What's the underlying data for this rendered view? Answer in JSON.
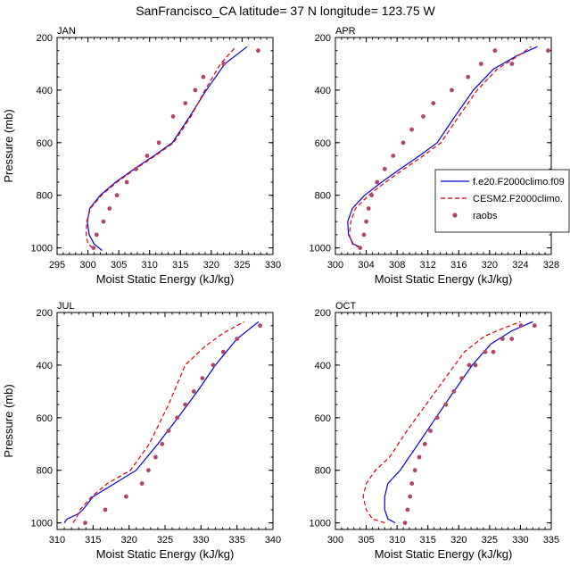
{
  "title": "SanFrancisco_CA  latitude= 37 N longitude= 123.75 W",
  "legend": {
    "entries": [
      {
        "label": "f.e20.F2000climo.f09",
        "style": "solid",
        "color": "#0000e0"
      },
      {
        "label": "CESM2.F2000climo.",
        "style": "dashed",
        "color": "#e00000"
      },
      {
        "label": "raobs",
        "style": "dots",
        "color": "#b0446a"
      }
    ]
  },
  "chart_data": [
    {
      "type": "line",
      "panel_title": "JAN",
      "xlabel": "Moist Static Energy (kJ/kg)",
      "ylabel": "Pressure (mb)",
      "xlim": [
        295,
        330
      ],
      "xticks": [
        "295",
        "300",
        "305",
        "310",
        "315",
        "320",
        "325",
        "330"
      ],
      "ylim": [
        200,
        1025
      ],
      "yticks": [
        "200",
        "400",
        "600",
        "800",
        "1000"
      ],
      "series": [
        {
          "name": "f.e20.F2000climo.f09",
          "x": [
            302.3,
            301.0,
            300.2,
            299.9,
            300.3,
            302.0,
            304.5,
            307.5,
            310.7,
            313.7,
            316.5,
            319.2,
            322.2,
            325.8
          ],
          "p": [
            1010,
            985,
            950,
            900,
            850,
            800,
            750,
            700,
            650,
            600,
            500,
            400,
            300,
            235
          ]
        },
        {
          "name": "CESM2.F2000climo.",
          "x": [
            300.8,
            300.0,
            299.7,
            299.8,
            300.4,
            302.2,
            304.7,
            307.7,
            310.9,
            313.9,
            316.7,
            319.0,
            321.5,
            324.0
          ],
          "p": [
            1000,
            985,
            950,
            900,
            850,
            800,
            750,
            700,
            650,
            600,
            500,
            400,
            300,
            235
          ]
        },
        {
          "name": "raobs",
          "x": [
            300.9,
            301.4,
            302.5,
            303.5,
            304.7,
            306.3,
            307.8,
            309.6,
            311.5,
            313.8,
            315.8,
            317.4,
            318.7,
            322.0,
            327.6
          ],
          "p": [
            1000,
            950,
            900,
            850,
            800,
            750,
            700,
            650,
            600,
            500,
            450,
            400,
            350,
            300,
            250
          ]
        }
      ]
    },
    {
      "type": "line",
      "panel_title": "APR",
      "xlabel": "Moist Static Energy (kJ/kg)",
      "ylabel": "",
      "xlim": [
        300,
        328
      ],
      "xticks": [
        "300",
        "304",
        "308",
        "312",
        "316",
        "320",
        "324",
        "328"
      ],
      "ylim": [
        200,
        1025
      ],
      "yticks": [
        "200",
        "400",
        "600",
        "800",
        "1000"
      ],
      "series": [
        {
          "name": "f.e20.F2000climo.f09",
          "x": [
            303.4,
            302.3,
            301.7,
            301.6,
            302.2,
            303.8,
            306.0,
            308.4,
            310.9,
            313.2,
            315.5,
            317.9,
            320.5,
            323.5,
            326.2
          ],
          "p": [
            1000,
            985,
            950,
            900,
            850,
            800,
            750,
            700,
            650,
            600,
            500,
            400,
            320,
            270,
            235
          ]
        },
        {
          "name": "CESM2.F2000climo.",
          "x": [
            303.2,
            302.2,
            301.8,
            302.0,
            302.6,
            304.3,
            306.5,
            308.9,
            311.4,
            313.7,
            316.0,
            318.4,
            321.0,
            323.7,
            325.4
          ],
          "p": [
            1000,
            985,
            950,
            900,
            850,
            800,
            750,
            700,
            650,
            600,
            500,
            400,
            320,
            270,
            235
          ]
        },
        {
          "name": "raobs",
          "x": [
            303.2,
            303.7,
            304.0,
            304.3,
            304.7,
            305.4,
            306.4,
            307.5,
            308.8,
            309.9,
            311.4,
            312.7,
            315.1,
            317.2,
            318.9,
            320.7,
            322.9,
            327.6
          ],
          "p": [
            1000,
            950,
            900,
            850,
            800,
            750,
            700,
            650,
            600,
            550,
            500,
            450,
            400,
            350,
            300,
            250,
            300,
            250
          ]
        }
      ]
    },
    {
      "type": "line",
      "panel_title": "JUL",
      "xlabel": "Moist Static Energy (kJ/kg)",
      "ylabel": "Pressure (mb)",
      "xlim": [
        310,
        340
      ],
      "xticks": [
        "310",
        "315",
        "320",
        "325",
        "330",
        "335",
        "340"
      ],
      "ylim": [
        200,
        1025
      ],
      "yticks": [
        "200",
        "400",
        "600",
        "800",
        "1000"
      ],
      "series": [
        {
          "name": "f.e20.F2000climo.f09",
          "x": [
            311.0,
            311.4,
            313.0,
            313.6,
            315.0,
            318.0,
            321.0,
            324.0,
            326.8,
            329.5,
            332.0,
            335.0,
            338.0
          ],
          "p": [
            1000,
            985,
            965,
            950,
            900,
            850,
            800,
            700,
            600,
            500,
            400,
            300,
            235
          ]
        },
        {
          "name": "CESM2.F2000climo.",
          "x": [
            312.2,
            312.6,
            313.2,
            314.8,
            317.0,
            320.2,
            322.8,
            325.5,
            327.8,
            330.5,
            333.0,
            336.0
          ],
          "p": [
            1000,
            985,
            950,
            900,
            850,
            800,
            700,
            550,
            400,
            330,
            280,
            235
          ]
        },
        {
          "name": "raobs",
          "x": [
            313.9,
            316.7,
            319.6,
            321.8,
            322.7,
            323.7,
            324.6,
            325.5,
            326.7,
            327.8,
            329.0,
            330.2,
            331.7,
            333.1,
            335.0,
            338.2
          ],
          "p": [
            1000,
            950,
            900,
            850,
            800,
            750,
            700,
            650,
            600,
            550,
            500,
            450,
            400,
            350,
            300,
            250
          ]
        }
      ]
    },
    {
      "type": "line",
      "panel_title": "OCT",
      "xlabel": "Moist Static Energy (kJ/kg)",
      "ylabel": "",
      "xlim": [
        300,
        335
      ],
      "xticks": [
        "300",
        "305",
        "310",
        "315",
        "320",
        "325",
        "330",
        "335"
      ],
      "ylim": [
        200,
        1025
      ],
      "yticks": [
        "200",
        "400",
        "600",
        "800",
        "1000"
      ],
      "series": [
        {
          "name": "f.e20.F2000climo.f09",
          "x": [
            309.7,
            308.5,
            308.0,
            308.0,
            308.5,
            310.5,
            313.4,
            316.3,
            319.2,
            322.2,
            325.2,
            328.6,
            332.0
          ],
          "p": [
            1000,
            985,
            950,
            900,
            850,
            800,
            700,
            600,
            500,
            400,
            320,
            270,
            235
          ]
        },
        {
          "name": "CESM2.F2000climo.",
          "x": [
            308.0,
            306.0,
            305.0,
            304.5,
            305.0,
            306.5,
            308.8,
            311.6,
            314.7,
            317.8,
            320.9,
            324.2,
            327.2,
            330.0
          ],
          "p": [
            1000,
            985,
            950,
            900,
            850,
            800,
            750,
            650,
            550,
            450,
            350,
            290,
            260,
            235
          ]
        },
        {
          "name": "raobs",
          "x": [
            311.3,
            311.7,
            312.1,
            312.4,
            312.9,
            313.6,
            314.5,
            315.4,
            316.5,
            317.9,
            319.2,
            320.5,
            321.7,
            322.7,
            324.3,
            325.6,
            327.1,
            328.6,
            330.1,
            332.3
          ],
          "p": [
            1000,
            950,
            900,
            850,
            800,
            750,
            700,
            650,
            600,
            550,
            500,
            450,
            400,
            400,
            350,
            350,
            300,
            300,
            250,
            250
          ]
        }
      ]
    }
  ]
}
